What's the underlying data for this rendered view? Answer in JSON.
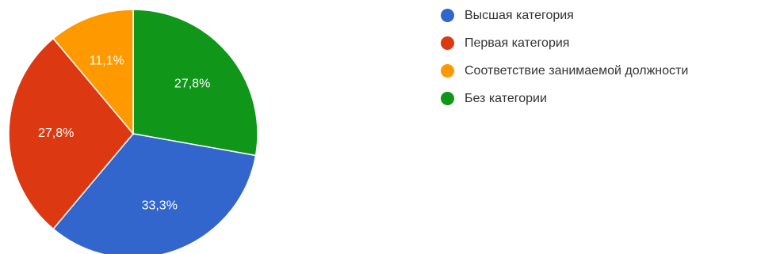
{
  "chart_data": {
    "type": "pie",
    "slices": [
      {
        "label": "Высшая категория",
        "value": 33.3,
        "display": "33,3%",
        "color": "#3366cc"
      },
      {
        "label": "Первая категория",
        "value": 27.8,
        "display": "27,8%",
        "color": "#dc3912"
      },
      {
        "label": "Соответствие занимаемой должности",
        "value": 11.1,
        "display": "11,1%",
        "color": "#ff9900"
      },
      {
        "label": "Без категории",
        "value": 27.8,
        "display": "27,8%",
        "color": "#109618"
      }
    ],
    "legend_position": "right"
  }
}
